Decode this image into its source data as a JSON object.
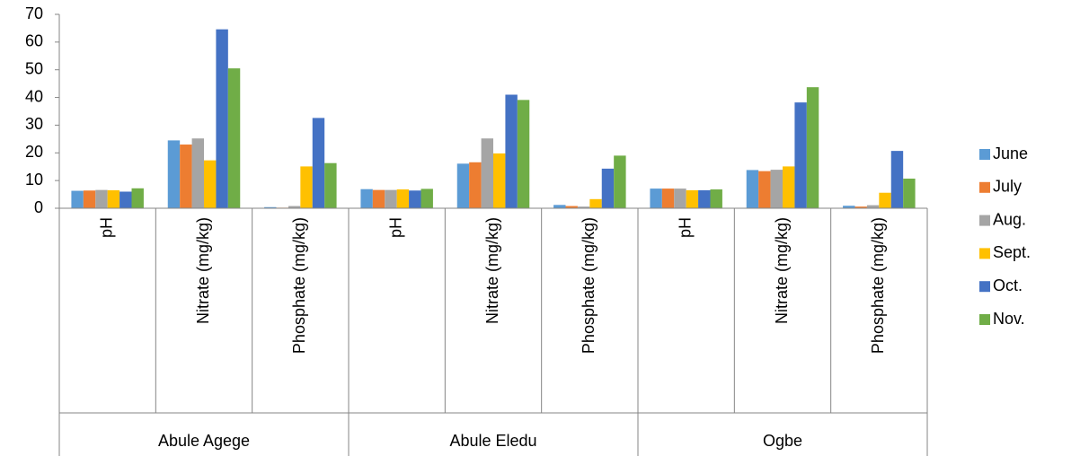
{
  "chart_data": {
    "type": "bar",
    "categories": [
      "pH",
      "Nitrate (mg/kg)",
      "Phosphate (mg/kg)",
      "pH",
      "Nitrate (mg/kg)",
      "Phosphate (mg/kg)",
      "pH",
      "Nitrate (mg/kg)",
      "Phosphate (mg/kg)"
    ],
    "groups": [
      "Abule Agege",
      "Abule Eledu",
      "Ogbe"
    ],
    "series": [
      {
        "name": "June",
        "color": "#5b9bd5",
        "values": [
          6.3,
          24.5,
          0.4,
          6.9,
          16.1,
          1.2,
          7.1,
          13.8,
          0.9
        ]
      },
      {
        "name": "July",
        "color": "#ed7d31",
        "values": [
          6.4,
          23.0,
          0.2,
          6.6,
          16.6,
          0.8,
          7.1,
          13.4,
          0.6
        ]
      },
      {
        "name": "Aug.",
        "color": "#a5a5a5",
        "values": [
          6.6,
          25.2,
          0.8,
          6.6,
          25.2,
          0.6,
          7.1,
          13.9,
          1.1
        ]
      },
      {
        "name": "Sept.",
        "color": "#ffc000",
        "values": [
          6.5,
          17.3,
          15.1,
          6.8,
          19.8,
          3.3,
          6.5,
          15.1,
          5.6
        ]
      },
      {
        "name": "Oct.",
        "color": "#4472c4",
        "values": [
          6.0,
          64.6,
          32.6,
          6.4,
          41.0,
          14.3,
          6.5,
          38.2,
          20.7
        ]
      },
      {
        "name": "Nov.",
        "color": "#70ad47",
        "values": [
          7.2,
          50.5,
          16.3,
          7.0,
          39.1,
          19.0,
          6.8,
          43.7,
          10.7
        ]
      }
    ],
    "ylim": [
      0,
      70
    ],
    "yticks": [
      0,
      10,
      20,
      30,
      40,
      50,
      60,
      70
    ],
    "grid": false,
    "legend": "right"
  }
}
